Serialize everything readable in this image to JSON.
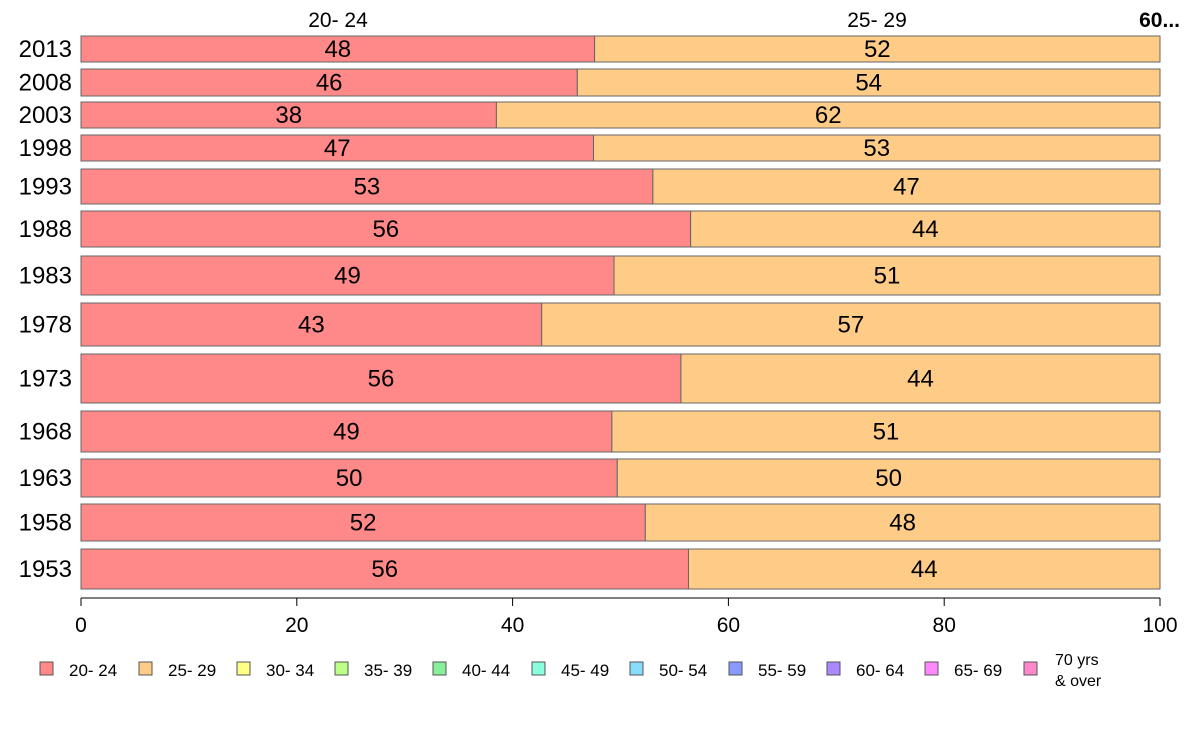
{
  "chart_data": {
    "type": "bar",
    "orientation": "horizontal",
    "stacked": true,
    "categories": [
      "2013",
      "2008",
      "2003",
      "1998",
      "1993",
      "1988",
      "1983",
      "1978",
      "1973",
      "1968",
      "1963",
      "1958",
      "1953"
    ],
    "series": [
      {
        "name": "20- 24",
        "color": "#ff8888",
        "values": [
          47.6,
          46.0,
          38.5,
          47.5,
          53.0,
          56.5,
          49.4,
          42.7,
          55.6,
          49.2,
          49.7,
          52.3,
          56.3
        ],
        "labels": [
          "48",
          "46",
          "38",
          "47",
          "53",
          "56",
          "49",
          "43",
          "56",
          "49",
          "50",
          "52",
          "56"
        ]
      },
      {
        "name": "25- 29",
        "color": "#ffcc88",
        "values": [
          52.4,
          54.0,
          61.5,
          52.5,
          47.0,
          43.5,
          50.6,
          57.3,
          44.4,
          50.8,
          50.3,
          47.7,
          43.7
        ],
        "labels": [
          "52",
          "54",
          "62",
          "53",
          "47",
          "44",
          "51",
          "57",
          "44",
          "51",
          "50",
          "48",
          "44"
        ]
      },
      {
        "name": "30- 34",
        "color": "#ffff88",
        "values": [
          0,
          0,
          0,
          0,
          0,
          0,
          0,
          0,
          0,
          0,
          0,
          0,
          0
        ]
      },
      {
        "name": "35- 39",
        "color": "#bbff88",
        "values": [
          0,
          0,
          0,
          0,
          0,
          0,
          0,
          0,
          0,
          0,
          0,
          0,
          0
        ]
      },
      {
        "name": "40- 44",
        "color": "#88ee99",
        "values": [
          0,
          0,
          0,
          0,
          0,
          0,
          0,
          0,
          0,
          0,
          0,
          0,
          0
        ]
      },
      {
        "name": "45- 49",
        "color": "#88ffdd",
        "values": [
          0,
          0,
          0,
          0,
          0,
          0,
          0,
          0,
          0,
          0,
          0,
          0,
          0
        ]
      },
      {
        "name": "50- 54",
        "color": "#88ddff",
        "values": [
          0,
          0,
          0,
          0,
          0,
          0,
          0,
          0,
          0,
          0,
          0,
          0,
          0
        ]
      },
      {
        "name": "55- 59",
        "color": "#8899ff",
        "values": [
          0,
          0,
          0,
          0,
          0,
          0,
          0,
          0,
          0,
          0,
          0,
          0,
          0
        ]
      },
      {
        "name": "60- 64",
        "color": "#aa88ff",
        "values": [
          0,
          0,
          0,
          0,
          0,
          0,
          0,
          0,
          0,
          0,
          0,
          0,
          0
        ]
      },
      {
        "name": "65- 69",
        "color": "#ff88ff",
        "values": [
          0,
          0,
          0,
          0,
          0,
          0,
          0,
          0,
          0,
          0,
          0,
          0,
          0
        ]
      },
      {
        "name": "70 yrs & over",
        "color": "#ff88cc",
        "values": [
          0,
          0,
          0,
          0,
          0,
          0,
          0,
          0,
          0,
          0,
          0,
          0,
          0
        ]
      }
    ],
    "top_labels": [
      "20- 24",
      "25- 29",
      "60..."
    ],
    "xlim": [
      0,
      100
    ],
    "xticks": [
      0,
      20,
      40,
      60,
      80,
      100
    ],
    "legend": {
      "position": "bottom",
      "items": [
        "20- 24",
        "25- 29",
        "30- 34",
        "35- 39",
        "40- 44",
        "45- 49",
        "50- 54",
        "55- 59",
        "60- 64",
        "65- 69",
        [
          "70 yrs",
          "& over"
        ]
      ]
    },
    "grid": false
  }
}
